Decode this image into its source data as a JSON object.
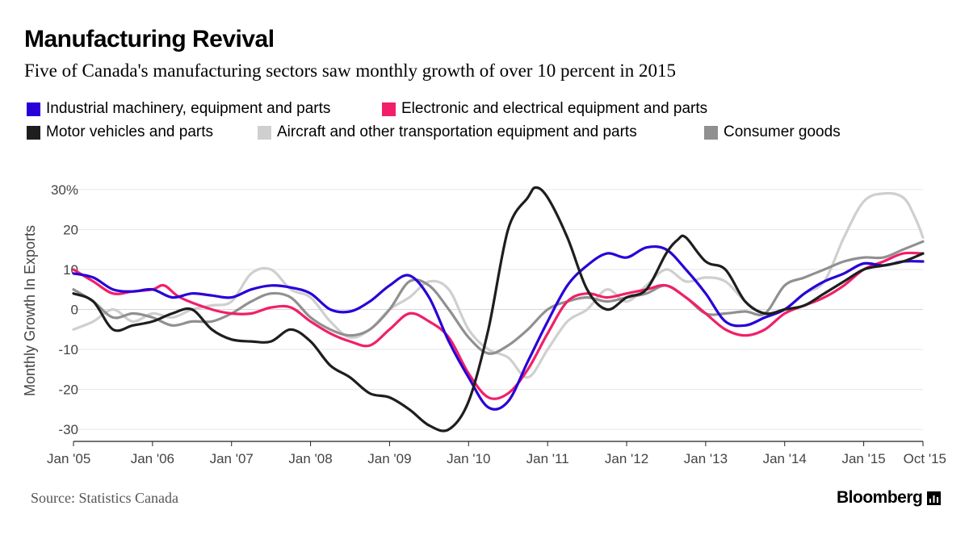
{
  "header": {
    "title": "Manufacturing Revival",
    "subtitle": "Five of Canada's manufacturing sectors saw monthly growth of over 10 percent in 2015"
  },
  "footer": {
    "source": "Source: Statistics Canada",
    "brand": "Bloomberg",
    "brand_icon": "bloomberg-chart-icon"
  },
  "chart_data": {
    "type": "line",
    "ylabel": "Monthly Growth In Exports",
    "xlabel": "",
    "ylim": [
      -33,
      33
    ],
    "y_ticks": [
      30,
      20,
      10,
      0,
      -10,
      -20,
      -30
    ],
    "y_tick_labels": [
      "30%",
      "20",
      "10",
      "0",
      "-10",
      "-20",
      "-30"
    ],
    "x_range": [
      2005.0,
      2015.75
    ],
    "x_ticks": [
      {
        "x": 2005.0,
        "label": "Jan '05"
      },
      {
        "x": 2006.0,
        "label": "Jan '06"
      },
      {
        "x": 2007.0,
        "label": "Jan '07"
      },
      {
        "x": 2008.0,
        "label": "Jan '08"
      },
      {
        "x": 2009.0,
        "label": "Jan '09"
      },
      {
        "x": 2010.0,
        "label": "Jan '10"
      },
      {
        "x": 2011.0,
        "label": "Jan '11"
      },
      {
        "x": 2012.0,
        "label": "Jan '12"
      },
      {
        "x": 2013.0,
        "label": "Jan '13"
      },
      {
        "x": 2014.0,
        "label": "Jan '14"
      },
      {
        "x": 2015.0,
        "label": "Jan '15"
      },
      {
        "x": 2015.75,
        "label": "Oct '15"
      }
    ],
    "grid": true,
    "legend_position": "top",
    "series": [
      {
        "name": "Industrial machinery, equipment and parts",
        "color": "#2800d7",
        "points": [
          [
            2005.0,
            9
          ],
          [
            2005.25,
            8
          ],
          [
            2005.5,
            5
          ],
          [
            2005.75,
            4.5
          ],
          [
            2006.0,
            5
          ],
          [
            2006.25,
            3
          ],
          [
            2006.5,
            4
          ],
          [
            2006.75,
            3.5
          ],
          [
            2007.0,
            3
          ],
          [
            2007.25,
            5
          ],
          [
            2007.5,
            6
          ],
          [
            2007.75,
            5.5
          ],
          [
            2008.0,
            4
          ],
          [
            2008.25,
            0
          ],
          [
            2008.5,
            -0.5
          ],
          [
            2008.75,
            2
          ],
          [
            2009.0,
            6
          ],
          [
            2009.25,
            8.5
          ],
          [
            2009.5,
            3
          ],
          [
            2009.75,
            -8
          ],
          [
            2010.0,
            -17
          ],
          [
            2010.25,
            -24.5
          ],
          [
            2010.5,
            -23
          ],
          [
            2010.75,
            -13
          ],
          [
            2011.0,
            -3
          ],
          [
            2011.25,
            6
          ],
          [
            2011.5,
            11
          ],
          [
            2011.75,
            14
          ],
          [
            2012.0,
            13
          ],
          [
            2012.25,
            15.5
          ],
          [
            2012.5,
            15
          ],
          [
            2012.75,
            10
          ],
          [
            2013.0,
            4
          ],
          [
            2013.25,
            -3
          ],
          [
            2013.5,
            -4
          ],
          [
            2013.75,
            -2
          ],
          [
            2014.0,
            0
          ],
          [
            2014.25,
            4
          ],
          [
            2014.5,
            7
          ],
          [
            2014.75,
            9
          ],
          [
            2015.0,
            11.5
          ],
          [
            2015.25,
            11
          ],
          [
            2015.5,
            12
          ],
          [
            2015.75,
            12
          ]
        ]
      },
      {
        "name": "Electronic and electrical equipment and parts",
        "color": "#f11f6a",
        "points": [
          [
            2005.0,
            10
          ],
          [
            2005.25,
            7
          ],
          [
            2005.5,
            4
          ],
          [
            2005.75,
            4.5
          ],
          [
            2006.0,
            5
          ],
          [
            2006.15,
            6
          ],
          [
            2006.35,
            3
          ],
          [
            2006.75,
            0
          ],
          [
            2007.0,
            -1
          ],
          [
            2007.25,
            -1
          ],
          [
            2007.5,
            0.5
          ],
          [
            2007.75,
            0.5
          ],
          [
            2008.0,
            -3
          ],
          [
            2008.25,
            -6
          ],
          [
            2008.5,
            -8
          ],
          [
            2008.75,
            -9
          ],
          [
            2009.0,
            -5
          ],
          [
            2009.25,
            -1
          ],
          [
            2009.5,
            -3
          ],
          [
            2009.75,
            -7
          ],
          [
            2010.0,
            -16
          ],
          [
            2010.25,
            -22
          ],
          [
            2010.5,
            -21
          ],
          [
            2010.75,
            -15
          ],
          [
            2011.0,
            -6
          ],
          [
            2011.25,
            2
          ],
          [
            2011.5,
            4
          ],
          [
            2011.75,
            3
          ],
          [
            2012.0,
            4
          ],
          [
            2012.25,
            5
          ],
          [
            2012.5,
            6
          ],
          [
            2012.75,
            3
          ],
          [
            2013.0,
            -1
          ],
          [
            2013.25,
            -5
          ],
          [
            2013.5,
            -6.5
          ],
          [
            2013.75,
            -5
          ],
          [
            2014.0,
            -1
          ],
          [
            2014.25,
            1
          ],
          [
            2014.5,
            3
          ],
          [
            2014.75,
            6
          ],
          [
            2015.0,
            10
          ],
          [
            2015.25,
            12
          ],
          [
            2015.5,
            14
          ],
          [
            2015.75,
            14
          ]
        ]
      },
      {
        "name": "Motor vehicles and parts",
        "color": "#1e1e1e",
        "points": [
          [
            2005.0,
            4
          ],
          [
            2005.25,
            2
          ],
          [
            2005.5,
            -5
          ],
          [
            2005.75,
            -4
          ],
          [
            2006.0,
            -3
          ],
          [
            2006.25,
            -1
          ],
          [
            2006.5,
            0
          ],
          [
            2006.75,
            -5
          ],
          [
            2007.0,
            -7.5
          ],
          [
            2007.25,
            -8
          ],
          [
            2007.5,
            -8
          ],
          [
            2007.75,
            -5
          ],
          [
            2008.0,
            -8
          ],
          [
            2008.25,
            -14
          ],
          [
            2008.5,
            -17
          ],
          [
            2008.75,
            -21
          ],
          [
            2009.0,
            -22
          ],
          [
            2009.25,
            -25
          ],
          [
            2009.5,
            -29
          ],
          [
            2009.75,
            -30
          ],
          [
            2010.0,
            -23
          ],
          [
            2010.25,
            -5
          ],
          [
            2010.5,
            20
          ],
          [
            2010.75,
            28
          ],
          [
            2010.85,
            30.5
          ],
          [
            2011.0,
            28
          ],
          [
            2011.25,
            18
          ],
          [
            2011.5,
            5
          ],
          [
            2011.75,
            0
          ],
          [
            2012.0,
            3
          ],
          [
            2012.25,
            5
          ],
          [
            2012.5,
            14
          ],
          [
            2012.65,
            17.5
          ],
          [
            2012.75,
            18
          ],
          [
            2013.0,
            12
          ],
          [
            2013.25,
            10
          ],
          [
            2013.5,
            2
          ],
          [
            2013.75,
            -1
          ],
          [
            2014.0,
            0
          ],
          [
            2014.25,
            1
          ],
          [
            2014.5,
            4
          ],
          [
            2014.75,
            7
          ],
          [
            2015.0,
            10
          ],
          [
            2015.25,
            11
          ],
          [
            2015.5,
            12
          ],
          [
            2015.75,
            14
          ]
        ]
      },
      {
        "name": "Aircraft and other transportation equipment and parts",
        "color": "#cfcfcf",
        "points": [
          [
            2005.0,
            -5
          ],
          [
            2005.25,
            -3
          ],
          [
            2005.5,
            0
          ],
          [
            2005.75,
            -3
          ],
          [
            2006.0,
            -1
          ],
          [
            2006.25,
            -2
          ],
          [
            2006.5,
            0
          ],
          [
            2006.75,
            1
          ],
          [
            2007.0,
            2
          ],
          [
            2007.25,
            9
          ],
          [
            2007.5,
            10
          ],
          [
            2007.75,
            5
          ],
          [
            2008.0,
            3
          ],
          [
            2008.25,
            -3
          ],
          [
            2008.5,
            -7
          ],
          [
            2008.75,
            -5
          ],
          [
            2009.0,
            0
          ],
          [
            2009.25,
            3
          ],
          [
            2009.5,
            7
          ],
          [
            2009.75,
            5
          ],
          [
            2010.0,
            -5
          ],
          [
            2010.25,
            -10
          ],
          [
            2010.5,
            -12
          ],
          [
            2010.75,
            -17
          ],
          [
            2011.0,
            -10
          ],
          [
            2011.25,
            -3
          ],
          [
            2011.5,
            0
          ],
          [
            2011.75,
            5
          ],
          [
            2012.0,
            2
          ],
          [
            2012.25,
            6
          ],
          [
            2012.5,
            10
          ],
          [
            2012.75,
            7
          ],
          [
            2013.0,
            8
          ],
          [
            2013.25,
            7
          ],
          [
            2013.5,
            2
          ],
          [
            2013.75,
            -1
          ],
          [
            2014.0,
            0
          ],
          [
            2014.25,
            4
          ],
          [
            2014.5,
            7
          ],
          [
            2014.75,
            18
          ],
          [
            2015.0,
            27
          ],
          [
            2015.25,
            29
          ],
          [
            2015.5,
            28
          ],
          [
            2015.65,
            23
          ],
          [
            2015.75,
            18
          ]
        ]
      },
      {
        "name": "Consumer goods",
        "color": "#909090",
        "points": [
          [
            2005.0,
            5
          ],
          [
            2005.25,
            2
          ],
          [
            2005.5,
            -2
          ],
          [
            2005.75,
            -1
          ],
          [
            2006.0,
            -2
          ],
          [
            2006.25,
            -4
          ],
          [
            2006.5,
            -3
          ],
          [
            2006.75,
            -3
          ],
          [
            2007.0,
            -1
          ],
          [
            2007.25,
            2
          ],
          [
            2007.5,
            4
          ],
          [
            2007.75,
            3
          ],
          [
            2008.0,
            -2
          ],
          [
            2008.25,
            -5
          ],
          [
            2008.5,
            -6.5
          ],
          [
            2008.75,
            -5
          ],
          [
            2009.0,
            0
          ],
          [
            2009.25,
            7
          ],
          [
            2009.5,
            6
          ],
          [
            2009.75,
            0
          ],
          [
            2010.0,
            -7
          ],
          [
            2010.25,
            -11
          ],
          [
            2010.5,
            -9
          ],
          [
            2010.75,
            -5
          ],
          [
            2011.0,
            0
          ],
          [
            2011.25,
            2
          ],
          [
            2011.5,
            3
          ],
          [
            2011.75,
            2
          ],
          [
            2012.0,
            3
          ],
          [
            2012.25,
            4
          ],
          [
            2012.5,
            6
          ],
          [
            2012.75,
            3
          ],
          [
            2013.0,
            -1
          ],
          [
            2013.25,
            -1
          ],
          [
            2013.5,
            -0.5
          ],
          [
            2013.75,
            -1
          ],
          [
            2014.0,
            6
          ],
          [
            2014.25,
            8
          ],
          [
            2014.5,
            10
          ],
          [
            2014.75,
            12
          ],
          [
            2015.0,
            13
          ],
          [
            2015.25,
            13
          ],
          [
            2015.5,
            15
          ],
          [
            2015.75,
            17
          ]
        ]
      }
    ]
  }
}
